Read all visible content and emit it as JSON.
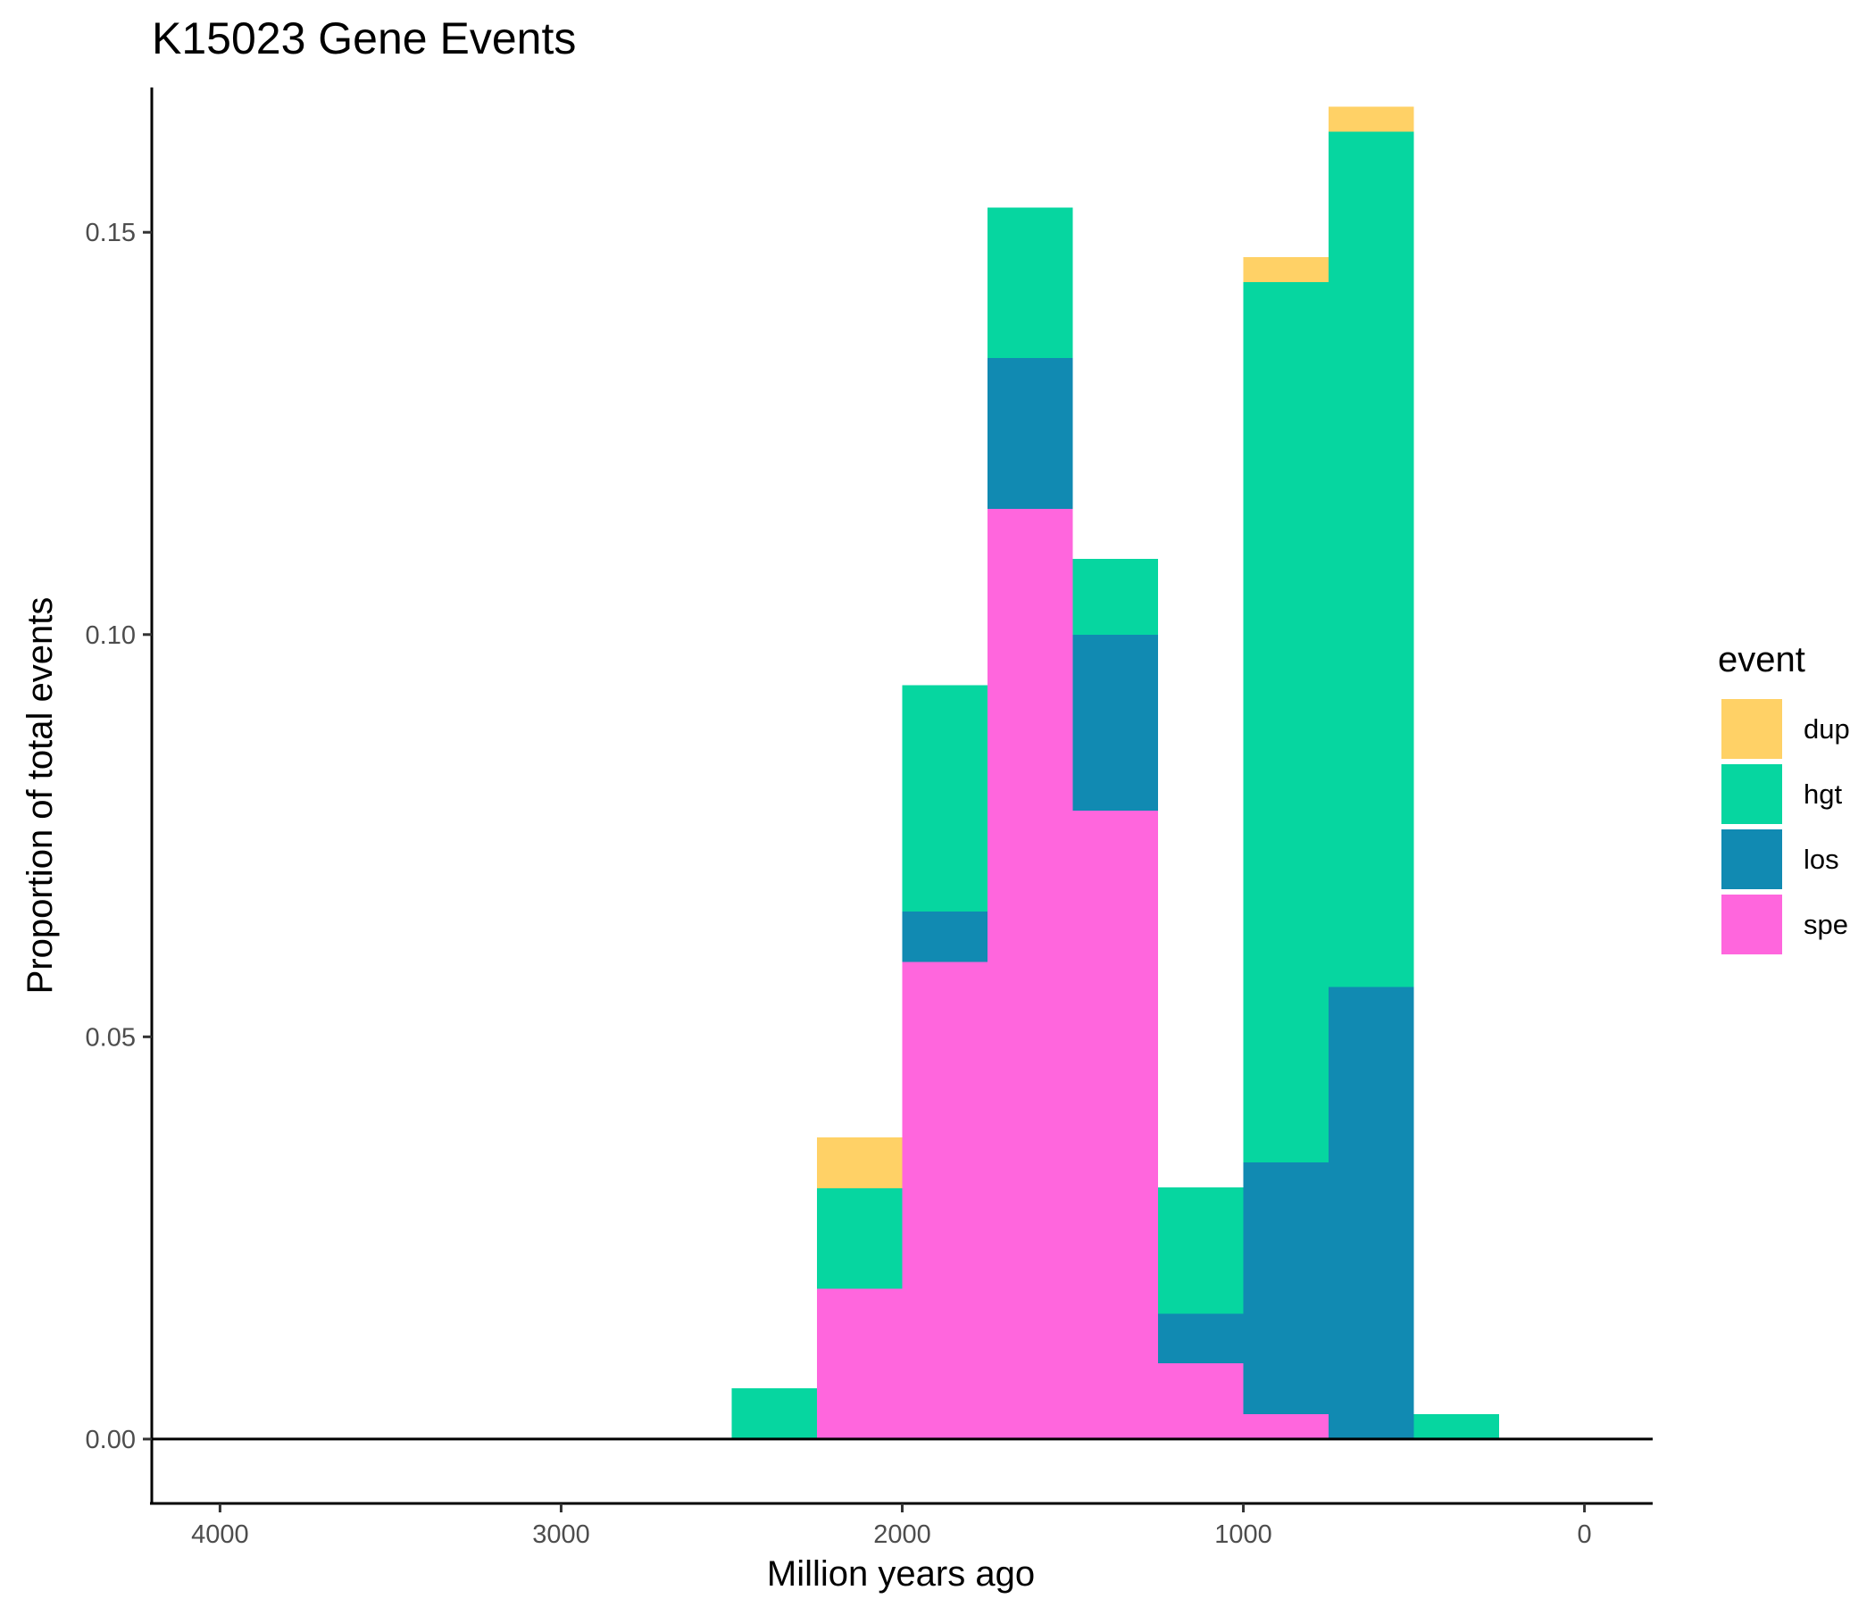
{
  "chart_data": {
    "type": "bar",
    "stacked": true,
    "title": "K15023 Gene Events",
    "xlabel": "Million years ago",
    "ylabel": "Proportion of total events",
    "x_reversed": true,
    "xlim": [
      4200,
      -200
    ],
    "ylim": [
      -0.008,
      0.168
    ],
    "x_ticks": [
      4000,
      3000,
      2000,
      1000,
      0
    ],
    "x_tick_labels": [
      "4000",
      "3000",
      "2000",
      "1000",
      "0"
    ],
    "y_ticks": [
      0.0,
      0.05,
      0.1,
      0.15
    ],
    "y_tick_labels": [
      "0.00",
      "0.05",
      "0.10",
      "0.15"
    ],
    "bin_width": 250,
    "bin_centers": [
      2375,
      2125,
      1875,
      1625,
      1375,
      1125,
      875,
      625,
      375
    ],
    "legend": {
      "title": "event",
      "position": "right"
    },
    "series": [
      {
        "name": "spe",
        "color": "#FF66DD",
        "values": [
          0,
          0.0187,
          0.0593,
          0.1156,
          0.0781,
          0.0094,
          0.0031,
          0,
          0
        ]
      },
      {
        "name": "los",
        "color": "#118AB2",
        "values": [
          0,
          0,
          0.0063,
          0.0188,
          0.0219,
          0.0062,
          0.0313,
          0.0562,
          0
        ]
      },
      {
        "name": "hgt",
        "color": "#06D6A0",
        "values": [
          0.0063,
          0.0125,
          0.0281,
          0.0187,
          0.0094,
          0.0157,
          0.1094,
          0.1063,
          0.0031
        ]
      },
      {
        "name": "dup",
        "color": "#FFD166",
        "values": [
          0,
          0.0063,
          0,
          0,
          0,
          0,
          0.0031,
          0.0031,
          0
        ]
      }
    ],
    "legend_order": [
      "dup",
      "hgt",
      "los",
      "spe"
    ]
  }
}
